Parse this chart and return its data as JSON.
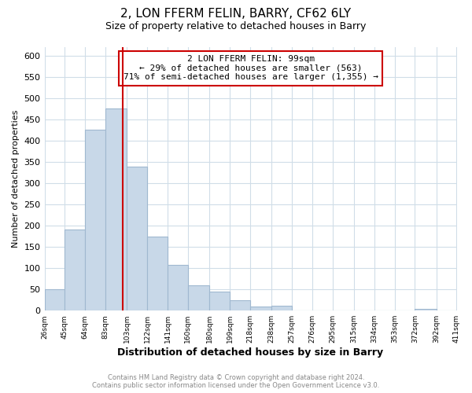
{
  "title": "2, LON FFERM FELIN, BARRY, CF62 6LY",
  "subtitle": "Size of property relative to detached houses in Barry",
  "xlabel": "Distribution of detached houses by size in Barry",
  "ylabel": "Number of detached properties",
  "bar_edges": [
    26,
    45,
    64,
    83,
    103,
    122,
    141,
    160,
    180,
    199,
    218,
    238,
    257,
    276,
    295,
    315,
    334,
    353,
    372,
    392,
    411
  ],
  "bar_heights": [
    50,
    190,
    425,
    475,
    338,
    175,
    108,
    60,
    44,
    25,
    10,
    12,
    0,
    0,
    0,
    0,
    0,
    0,
    5,
    0
  ],
  "bar_color": "#c8d8e8",
  "bar_edgecolor": "#a0b8d0",
  "property_value": 99,
  "property_line_color": "#cc0000",
  "annotation_line1": "2 LON FFERM FELIN: 99sqm",
  "annotation_line2": "← 29% of detached houses are smaller (563)",
  "annotation_line3": "71% of semi-detached houses are larger (1,355) →",
  "annotation_box_edgecolor": "#cc0000",
  "ylim": [
    0,
    620
  ],
  "yticks": [
    0,
    50,
    100,
    150,
    200,
    250,
    300,
    350,
    400,
    450,
    500,
    550,
    600
  ],
  "footer_line1": "Contains HM Land Registry data © Crown copyright and database right 2024.",
  "footer_line2": "Contains public sector information licensed under the Open Government Licence v3.0.",
  "background_color": "#ffffff",
  "grid_color": "#d0dde8"
}
